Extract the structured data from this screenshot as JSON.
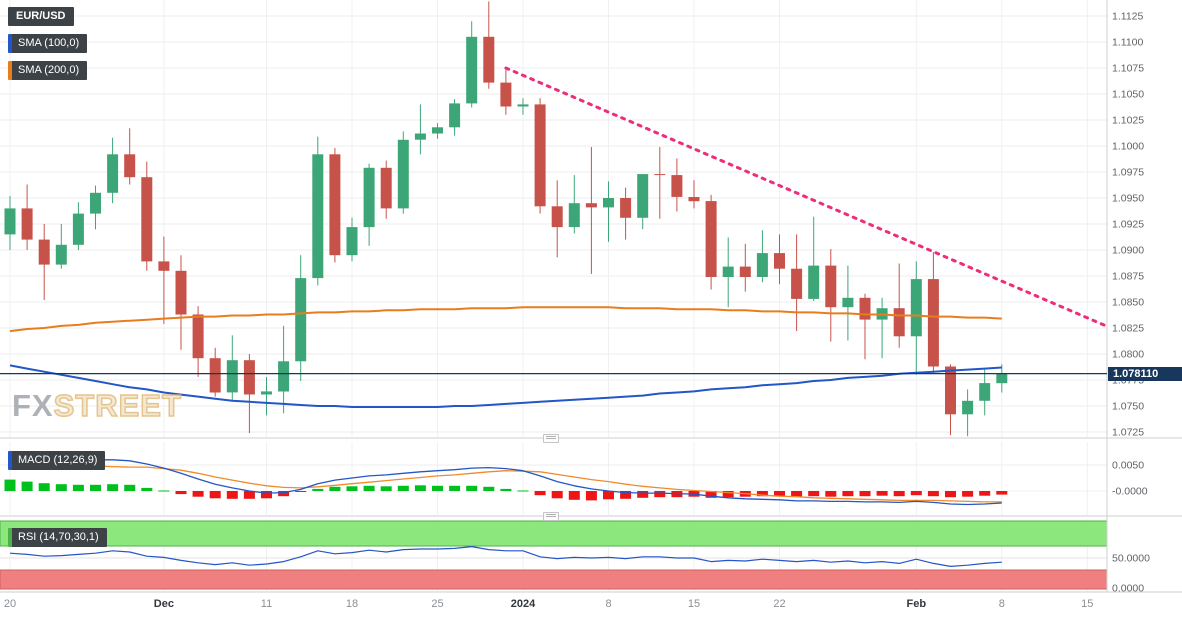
{
  "header": {
    "symbol_badge": "EUR/USD",
    "sma100_badge": "SMA (100,0)",
    "sma200_badge": "SMA (200,0)"
  },
  "macd_panel": {
    "badge": "MACD (12,26,9)",
    "axis_labels": [
      "0.0050",
      "-0.0000"
    ]
  },
  "rsi_panel": {
    "badge": "RSI (14,70,30,1)",
    "axis_labels": [
      "50.0000",
      "0.0000"
    ]
  },
  "watermark": {
    "part1": "FX",
    "part2": "STREET"
  },
  "price_axis": {
    "labels": [
      "1.1125",
      "1.1100",
      "1.1075",
      "1.1050",
      "1.1025",
      "1.1000",
      "1.0975",
      "1.0950",
      "1.0925",
      "1.0900",
      "1.0875",
      "1.0850",
      "1.0825",
      "1.0800",
      "1.0775",
      "1.0750",
      "1.0725"
    ],
    "current_price_label": "1.078110"
  },
  "x_axis": {
    "ticks": [
      {
        "label": "20",
        "i": 0,
        "strong": false
      },
      {
        "label": "Dec",
        "i": 9,
        "strong": true
      },
      {
        "label": "11",
        "i": 15,
        "strong": false
      },
      {
        "label": "18",
        "i": 20,
        "strong": false
      },
      {
        "label": "25",
        "i": 25,
        "strong": false
      },
      {
        "label": "2024",
        "i": 30,
        "strong": true
      },
      {
        "label": "8",
        "i": 35,
        "strong": false
      },
      {
        "label": "15",
        "i": 40,
        "strong": false
      },
      {
        "label": "22",
        "i": 45,
        "strong": false
      },
      {
        "label": "Feb",
        "i": 53,
        "strong": true
      },
      {
        "label": "8",
        "i": 58,
        "strong": false
      },
      {
        "label": "15",
        "i": 63,
        "strong": false
      }
    ]
  },
  "colors": {
    "up": "#3da678",
    "down": "#c7524a",
    "sma100": "#2356c7",
    "sma200": "#e87d1e",
    "trendline": "#ee2d7a",
    "macd_line": "#2356c7",
    "macd_signal": "#ef8b2d",
    "macd_hist_up": "#00c01d",
    "macd_hist_down": "#ed1515",
    "rsi_line": "#2356c7",
    "rsi_ob_band": "#8ce87c",
    "rsi_ob_border": "#4faf49",
    "rsi_os_band": "#f08080",
    "rsi_os_border": "#d05f5f",
    "price_line": "#17385c",
    "grid": "#ededed",
    "axis_text": "#5f6368"
  },
  "chart_data": {
    "type": "candlestick",
    "title": "EUR/USD daily chart with SMA(100), SMA(200), descending trendline, MACD(12,26,9) and RSI(14,70,30,1)",
    "symbol": "EUR/USD",
    "ylim": [
      1.0725,
      1.1125
    ],
    "y_ticks": [
      1.1125,
      1.11,
      1.1075,
      1.105,
      1.1025,
      1.1,
      1.0975,
      1.095,
      1.0925,
      1.09,
      1.0875,
      1.085,
      1.0825,
      1.08,
      1.0775,
      1.075,
      1.0725
    ],
    "current_price": 1.07811,
    "candle_format": [
      "date",
      "open",
      "high",
      "low",
      "close"
    ],
    "candles": [
      [
        "Nov 20",
        1.0915,
        1.0952,
        1.09,
        1.094
      ],
      [
        "Nov 21",
        1.094,
        1.0963,
        1.09,
        1.091
      ],
      [
        "Nov 22",
        1.091,
        1.0925,
        1.0852,
        1.0886
      ],
      [
        "Nov 23",
        1.0886,
        1.0925,
        1.0882,
        1.0905
      ],
      [
        "Nov 24",
        1.0905,
        1.0946,
        1.09,
        1.0935
      ],
      [
        "Nov 27",
        1.0935,
        1.0962,
        1.092,
        1.0955
      ],
      [
        "Nov 28",
        1.0955,
        1.1008,
        1.0945,
        1.0992
      ],
      [
        "Nov 29",
        1.0992,
        1.1017,
        1.0963,
        1.097
      ],
      [
        "Nov 30",
        1.097,
        1.0985,
        1.088,
        1.0889
      ],
      [
        "Dec 1",
        1.0889,
        1.0913,
        1.0829,
        1.088
      ],
      [
        "Dec 4",
        1.088,
        1.0895,
        1.0804,
        1.0838
      ],
      [
        "Dec 5",
        1.0838,
        1.0846,
        1.0778,
        1.0796
      ],
      [
        "Dec 6",
        1.0796,
        1.0806,
        1.0759,
        1.0763
      ],
      [
        "Dec 7",
        1.0763,
        1.0818,
        1.0755,
        1.0794
      ],
      [
        "Dec 8",
        1.0794,
        1.08,
        1.0724,
        1.0761
      ],
      [
        "Dec 11",
        1.0761,
        1.0778,
        1.0741,
        1.0764
      ],
      [
        "Dec 12",
        1.0764,
        1.0827,
        1.0743,
        1.0793
      ],
      [
        "Dec 13",
        1.0793,
        1.0895,
        1.0774,
        1.0873
      ],
      [
        "Dec 14",
        1.0873,
        1.1009,
        1.0866,
        1.0992
      ],
      [
        "Dec 15",
        1.0992,
        1.0998,
        1.0888,
        1.0895
      ],
      [
        "Dec 18",
        1.0895,
        1.0931,
        1.0889,
        1.0922
      ],
      [
        "Dec 19",
        1.0922,
        1.0983,
        1.0904,
        1.0979
      ],
      [
        "Dec 20",
        1.0979,
        1.0986,
        1.093,
        1.094
      ],
      [
        "Dec 21",
        1.094,
        1.1014,
        1.0935,
        1.1006
      ],
      [
        "Dec 22",
        1.1006,
        1.104,
        1.0992,
        1.1012
      ],
      [
        "Dec 25",
        1.1012,
        1.1022,
        1.1007,
        1.1018
      ],
      [
        "Dec 26",
        1.1018,
        1.1045,
        1.101,
        1.1041
      ],
      [
        "Dec 27",
        1.1041,
        1.112,
        1.1037,
        1.1105
      ],
      [
        "Dec 28",
        1.1105,
        1.1139,
        1.1055,
        1.1061
      ],
      [
        "Dec 29",
        1.1061,
        1.1075,
        1.103,
        1.1038
      ],
      [
        "Jan 1",
        1.1038,
        1.1046,
        1.103,
        1.104
      ],
      [
        "Jan 2",
        1.104,
        1.1046,
        1.0935,
        1.0942
      ],
      [
        "Jan 3",
        1.0942,
        1.0967,
        1.0893,
        1.0922
      ],
      [
        "Jan 4",
        1.0922,
        1.0972,
        1.0916,
        1.0945
      ],
      [
        "Jan 5",
        1.0945,
        1.0999,
        1.0877,
        1.0941
      ],
      [
        "Jan 8",
        1.0941,
        1.0966,
        1.0908,
        1.095
      ],
      [
        "Jan 9",
        1.095,
        1.096,
        1.091,
        1.0931
      ],
      [
        "Jan 10",
        1.0931,
        1.097,
        1.092,
        1.0973
      ],
      [
        "Jan 11",
        1.0973,
        1.0999,
        1.093,
        1.0972
      ],
      [
        "Jan 12",
        1.0972,
        1.0988,
        1.0937,
        1.0951
      ],
      [
        "Jan 15",
        1.0951,
        1.0967,
        1.094,
        1.0947
      ],
      [
        "Jan 16",
        1.0947,
        1.0953,
        1.0862,
        1.0874
      ],
      [
        "Jan 17",
        1.0874,
        1.0912,
        1.0845,
        1.0884
      ],
      [
        "Jan 18",
        1.0884,
        1.0906,
        1.086,
        1.0874
      ],
      [
        "Jan 19",
        1.0874,
        1.0919,
        1.0869,
        1.0897
      ],
      [
        "Jan 22",
        1.0897,
        1.0915,
        1.0867,
        1.0882
      ],
      [
        "Jan 23",
        1.0882,
        1.0915,
        1.0822,
        1.0853
      ],
      [
        "Jan 24",
        1.0853,
        1.0932,
        1.0851,
        1.0885
      ],
      [
        "Jan 25",
        1.0885,
        1.0901,
        1.0812,
        1.0845
      ],
      [
        "Jan 26",
        1.0845,
        1.0885,
        1.0813,
        1.0854
      ],
      [
        "Jan 29",
        1.0854,
        1.0858,
        1.0795,
        1.0833
      ],
      [
        "Jan 30",
        1.0833,
        1.0854,
        1.0796,
        1.0844
      ],
      [
        "Jan 31",
        1.0844,
        1.0887,
        1.0806,
        1.0817
      ],
      [
        "Feb 1",
        1.0817,
        1.0889,
        1.078,
        1.0872
      ],
      [
        "Feb 2",
        1.0872,
        1.0898,
        1.0781,
        1.0788
      ],
      [
        "Feb 5",
        1.0788,
        1.079,
        1.0722,
        1.0742
      ],
      [
        "Feb 6",
        1.0742,
        1.0766,
        1.0721,
        1.0755
      ],
      [
        "Feb 7",
        1.0755,
        1.0785,
        1.0741,
        1.0772
      ],
      [
        "Feb 8",
        1.0772,
        1.079,
        1.0763,
        1.0781
      ]
    ],
    "sma100": [
      1.0789,
      1.0786,
      1.0783,
      1.078,
      1.0777,
      1.0774,
      1.0771,
      1.0768,
      1.0766,
      1.0763,
      1.0761,
      1.0759,
      1.0757,
      1.0755,
      1.0754,
      1.0753,
      1.0752,
      1.0751,
      1.075,
      1.075,
      1.0749,
      1.0749,
      1.0749,
      1.0749,
      1.0749,
      1.0749,
      1.075,
      1.075,
      1.0751,
      1.0752,
      1.0753,
      1.0754,
      1.0755,
      1.0756,
      1.0757,
      1.0758,
      1.0759,
      1.076,
      1.0762,
      1.0763,
      1.0764,
      1.0766,
      1.0767,
      1.0768,
      1.077,
      1.0771,
      1.0772,
      1.0774,
      1.0775,
      1.0777,
      1.0778,
      1.0779,
      1.0781,
      1.0782,
      1.0783,
      1.0784,
      1.0785,
      1.0786,
      1.0787
    ],
    "sma200": [
      1.0822,
      1.0824,
      1.0825,
      1.0827,
      1.0828,
      1.083,
      1.0831,
      1.0832,
      1.0833,
      1.0834,
      1.0835,
      1.0836,
      1.0836,
      1.0837,
      1.0837,
      1.0838,
      1.0838,
      1.0839,
      1.084,
      1.084,
      1.0841,
      1.0841,
      1.0842,
      1.0842,
      1.0843,
      1.0843,
      1.0843,
      1.0844,
      1.0844,
      1.0844,
      1.0845,
      1.0845,
      1.0845,
      1.0845,
      1.0845,
      1.0845,
      1.0844,
      1.0844,
      1.0844,
      1.0843,
      1.0843,
      1.0843,
      1.0842,
      1.0842,
      1.0841,
      1.0841,
      1.084,
      1.084,
      1.0839,
      1.0839,
      1.0838,
      1.0838,
      1.0837,
      1.0837,
      1.0836,
      1.0836,
      1.0835,
      1.0835,
      1.0834
    ],
    "trendline": {
      "style": "dotted",
      "start": {
        "index": 29,
        "price": 1.1075
      },
      "end": {
        "index": 64.1,
        "price": 1.0827
      }
    },
    "macd": {
      "y_ticks": [
        0.005,
        0
      ],
      "histogram": [
        0.0022,
        0.0018,
        0.0015,
        0.0013,
        0.0012,
        0.0012,
        0.0013,
        0.0012,
        0.0006,
        0.0001,
        -0.0006,
        -0.0011,
        -0.0014,
        -0.0015,
        -0.0015,
        -0.0014,
        -0.001,
        -0.0001,
        0.0004,
        0.0008,
        0.0009,
        0.001,
        0.0009,
        0.001,
        0.0011,
        0.001,
        0.001,
        0.001,
        0.0008,
        0.0004,
        0.0001,
        -0.0008,
        -0.0014,
        -0.0017,
        -0.0018,
        -0.0016,
        -0.0015,
        -0.0013,
        -0.0012,
        -0.0012,
        -0.0011,
        -0.0013,
        -0.0012,
        -0.0011,
        -0.001,
        -0.001,
        -0.0011,
        -0.001,
        -0.0011,
        -0.001,
        -0.001,
        -0.0009,
        -0.001,
        -0.0008,
        -0.001,
        -0.0012,
        -0.0011,
        -0.0009,
        -0.0007
      ],
      "macd_line": [
        0.0076,
        0.0073,
        0.0069,
        0.0065,
        0.0062,
        0.006,
        0.006,
        0.0058,
        0.0052,
        0.0044,
        0.0034,
        0.0023,
        0.0013,
        0.0006,
        0.0,
        -0.0004,
        -0.0003,
        0.0003,
        0.0014,
        0.0021,
        0.0025,
        0.0029,
        0.0031,
        0.0034,
        0.0037,
        0.0039,
        0.0041,
        0.0044,
        0.0045,
        0.0043,
        0.0039,
        0.0029,
        0.0018,
        0.001,
        0.0004,
        0.0,
        -0.0003,
        -0.0004,
        -0.0004,
        -0.0005,
        -0.0006,
        -0.001,
        -0.0013,
        -0.0015,
        -0.0016,
        -0.0017,
        -0.0019,
        -0.0019,
        -0.002,
        -0.002,
        -0.0021,
        -0.0021,
        -0.0022,
        -0.002,
        -0.0022,
        -0.0025,
        -0.0026,
        -0.0025,
        -0.0023
      ],
      "signal_line": [
        0.0054,
        0.0055,
        0.0054,
        0.0052,
        0.005,
        0.0048,
        0.0047,
        0.0046,
        0.0046,
        0.0043,
        0.004,
        0.0034,
        0.0027,
        0.0021,
        0.0015,
        0.001,
        0.0007,
        0.0006,
        0.0008,
        0.0011,
        0.0014,
        0.0017,
        0.002,
        0.0023,
        0.0026,
        0.0029,
        0.0031,
        0.0034,
        0.0037,
        0.0039,
        0.0038,
        0.0037,
        0.0032,
        0.0027,
        0.0022,
        0.0018,
        0.0013,
        0.0009,
        0.0006,
        0.0003,
        0.0001,
        -0.0001,
        -0.0003,
        -0.0005,
        -0.0008,
        -0.001,
        -0.0011,
        -0.0013,
        -0.0014,
        -0.0015,
        -0.0016,
        -0.0017,
        -0.0018,
        -0.0018,
        -0.0018,
        -0.0019,
        -0.002,
        -0.0021,
        -0.0021
      ]
    },
    "rsi": {
      "y_ticks": [
        50,
        0
      ],
      "overbought_level": 70,
      "oversold_level": 30,
      "values": [
        58,
        56,
        53,
        54,
        56,
        58,
        62,
        60,
        53,
        51,
        46,
        42,
        39,
        42,
        38,
        40,
        44,
        52,
        62,
        57,
        59,
        63,
        60,
        64,
        65,
        65,
        66,
        69,
        64,
        62,
        62,
        52,
        49,
        51,
        50,
        51,
        49,
        52,
        52,
        50,
        50,
        44,
        46,
        45,
        48,
        46,
        44,
        46,
        43,
        45,
        42,
        44,
        41,
        48,
        41,
        36,
        38,
        41,
        43
      ]
    }
  }
}
